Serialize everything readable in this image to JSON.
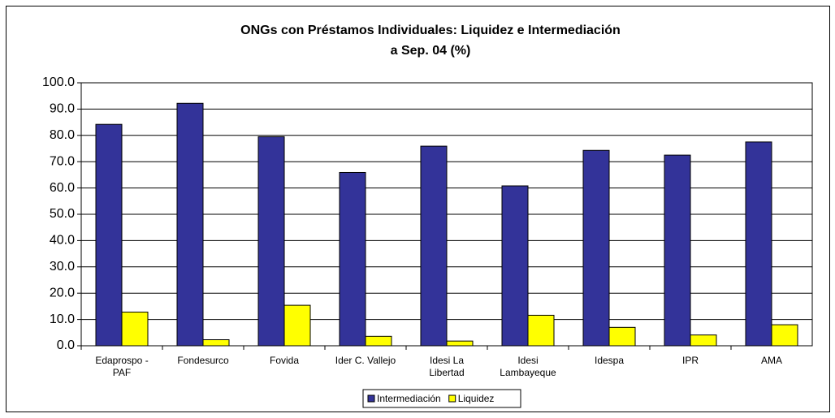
{
  "chart_data": {
    "type": "bar",
    "title": "ONGs con Préstamos Individuales: Liquidez e Intermediación",
    "subtitle": "a Sep. 04 (%)",
    "categories": [
      "Edaprospo - PAF",
      "Fondesurco",
      "Fovida",
      "Ider C. Vallejo",
      "Idesi La Libertad",
      "Idesi Lambayeque",
      "Idespa",
      "IPR",
      "AMA"
    ],
    "series": [
      {
        "name": "Intermediación",
        "color": "#333399",
        "values": [
          84.2,
          92.2,
          79.5,
          65.9,
          75.9,
          60.8,
          74.3,
          72.5,
          77.5
        ]
      },
      {
        "name": "Liquidez",
        "color": "#ffff00",
        "values": [
          12.8,
          2.3,
          15.4,
          3.6,
          1.8,
          11.6,
          7.0,
          4.1,
          8.0
        ]
      }
    ],
    "ylim": [
      0,
      100
    ],
    "yticks": [
      {
        "value": 0,
        "label": "0.0"
      },
      {
        "value": 10,
        "label": "10.0"
      },
      {
        "value": 20,
        "label": "20.0"
      },
      {
        "value": 30,
        "label": "30.0"
      },
      {
        "value": 40,
        "label": "40.0"
      },
      {
        "value": 50,
        "label": "50.0"
      },
      {
        "value": 60,
        "label": "60.0"
      },
      {
        "value": 70,
        "label": "70.0"
      },
      {
        "value": 80,
        "label": "80.0"
      },
      {
        "value": 90,
        "label": "90.0"
      },
      {
        "value": 100,
        "label": "100.0"
      }
    ],
    "grid": true,
    "legend": "bottom"
  }
}
